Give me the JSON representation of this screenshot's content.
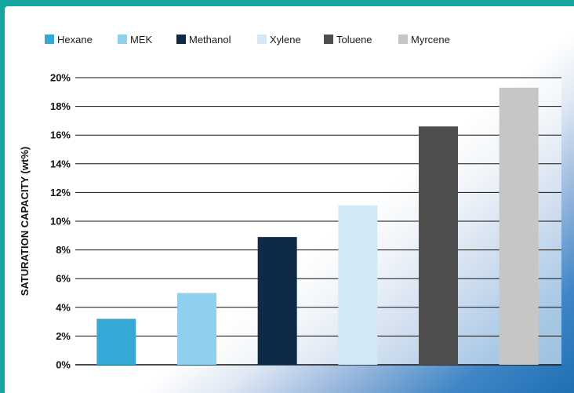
{
  "chart_data": {
    "type": "bar",
    "title": "",
    "xlabel": "",
    "ylabel": "SATURATION CAPACITY (wt%)",
    "ylim": [
      0,
      20
    ],
    "yticks": [
      "0%",
      "2%",
      "4%",
      "6%",
      "8%",
      "10%",
      "12%",
      "14%",
      "16%",
      "18%",
      "20%"
    ],
    "grid": true,
    "legend_position": "top",
    "categories": [
      "Hexane",
      "MEK",
      "Methanol",
      "Xylene",
      "Toluene",
      "Myrcene"
    ],
    "values": [
      3.2,
      5.0,
      8.9,
      11.1,
      16.6,
      19.3
    ],
    "colors": [
      "#35a8d6",
      "#8fd0ee",
      "#0e2a47",
      "#d2e8f5",
      "#4e4e4e",
      "#c6c6c6"
    ]
  }
}
